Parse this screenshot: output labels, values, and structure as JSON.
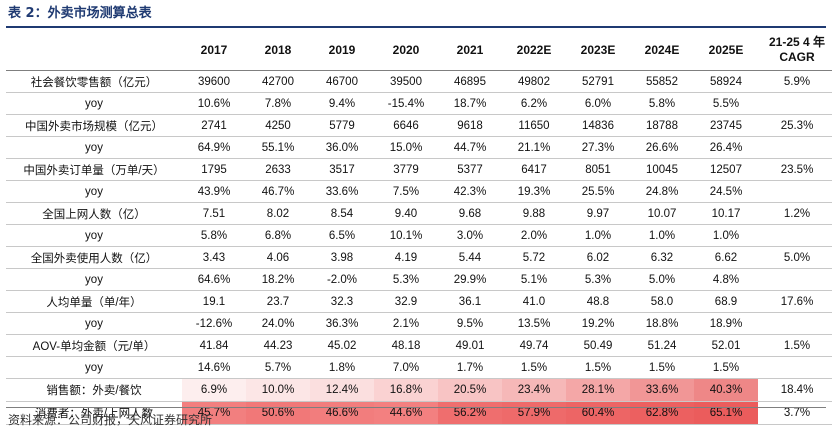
{
  "title": "表 2：外卖市场测算总表",
  "header": {
    "years": [
      "2017",
      "2018",
      "2019",
      "2020",
      "2021",
      "2022E",
      "2023E",
      "2024E",
      "2025E"
    ],
    "cagr_line1": "21-25 4 年",
    "cagr_line2": "CAGR"
  },
  "rows": [
    {
      "label": "社会餐饮零售额（亿元）",
      "values": [
        "39600",
        "42700",
        "46700",
        "39500",
        "46895",
        "49802",
        "52791",
        "55852",
        "58924"
      ],
      "cagr": "5.9%"
    },
    {
      "label": "yoy",
      "values": [
        "10.6%",
        "7.8%",
        "9.4%",
        "-15.4%",
        "18.7%",
        "6.2%",
        "6.0%",
        "5.8%",
        "5.5%"
      ],
      "cagr": ""
    },
    {
      "label": "中国外卖市场规模（亿元）",
      "values": [
        "2741",
        "4250",
        "5779",
        "6646",
        "9618",
        "11650",
        "14836",
        "18788",
        "23745"
      ],
      "cagr": "25.3%"
    },
    {
      "label": "yoy",
      "values": [
        "64.9%",
        "55.1%",
        "36.0%",
        "15.0%",
        "44.7%",
        "21.1%",
        "27.3%",
        "26.6%",
        "26.4%"
      ],
      "cagr": ""
    },
    {
      "label": "中国外卖订单量（万单/天）",
      "values": [
        "1795",
        "2633",
        "3517",
        "3779",
        "5377",
        "6417",
        "8051",
        "10045",
        "12507"
      ],
      "cagr": "23.5%"
    },
    {
      "label": "yoy",
      "values": [
        "43.9%",
        "46.7%",
        "33.6%",
        "7.5%",
        "42.3%",
        "19.3%",
        "25.5%",
        "24.8%",
        "24.5%"
      ],
      "cagr": ""
    },
    {
      "label": "全国上网人数（亿）",
      "values": [
        "7.51",
        "8.02",
        "8.54",
        "9.40",
        "9.68",
        "9.88",
        "9.97",
        "10.07",
        "10.17"
      ],
      "cagr": "1.2%"
    },
    {
      "label": "yoy",
      "values": [
        "5.8%",
        "6.8%",
        "6.5%",
        "10.1%",
        "3.0%",
        "2.0%",
        "1.0%",
        "1.0%",
        "1.0%"
      ],
      "cagr": ""
    },
    {
      "label": "全国外卖使用人数（亿）",
      "values": [
        "3.43",
        "4.06",
        "3.98",
        "4.19",
        "5.44",
        "5.72",
        "6.02",
        "6.32",
        "6.62"
      ],
      "cagr": "5.0%"
    },
    {
      "label": "yoy",
      "values": [
        "64.6%",
        "18.2%",
        "-2.0%",
        "5.3%",
        "29.9%",
        "5.1%",
        "5.3%",
        "5.0%",
        "4.8%"
      ],
      "cagr": ""
    },
    {
      "label": "人均单量（单/年）",
      "values": [
        "19.1",
        "23.7",
        "32.3",
        "32.9",
        "36.1",
        "41.0",
        "48.8",
        "58.0",
        "68.9"
      ],
      "cagr": "17.6%"
    },
    {
      "label": "yoy",
      "values": [
        "-12.6%",
        "24.0%",
        "36.3%",
        "2.1%",
        "9.5%",
        "13.5%",
        "19.2%",
        "18.8%",
        "18.9%"
      ],
      "cagr": ""
    },
    {
      "label": "AOV-单均金额（元/单）",
      "values": [
        "41.84",
        "44.23",
        "45.02",
        "48.18",
        "49.01",
        "49.74",
        "50.49",
        "51.24",
        "52.01"
      ],
      "cagr": "1.5%"
    },
    {
      "label": "yoy",
      "values": [
        "14.6%",
        "5.7%",
        "1.8%",
        "7.0%",
        "1.7%",
        "1.5%",
        "1.5%",
        "1.5%",
        "1.5%"
      ],
      "cagr": ""
    }
  ],
  "heat_rows": [
    {
      "label": "销售额：外卖/餐饮",
      "values": [
        "6.9%",
        "10.0%",
        "12.4%",
        "16.8%",
        "20.5%",
        "23.4%",
        "28.1%",
        "33.6%",
        "40.3%"
      ],
      "colors": [
        "#fdeeee",
        "#fce6e6",
        "#fbdfdf",
        "#fad2d2",
        "#f8c4c4",
        "#f6b8b8",
        "#f4a7a7",
        "#f19696",
        "#ee8787"
      ],
      "cagr": "18.4%"
    },
    {
      "label": "消费者：外卖/上网人数",
      "values": [
        "45.7%",
        "50.6%",
        "46.6%",
        "44.6%",
        "56.2%",
        "57.9%",
        "60.4%",
        "62.8%",
        "65.1%"
      ],
      "colors": [
        "#f27f7f",
        "#f17878",
        "#f27d7d",
        "#f38080",
        "#ef6e6e",
        "#ee6a6a",
        "#ed6565",
        "#ec6060",
        "#eb5c5c"
      ],
      "cagr": "3.7%"
    }
  ],
  "source": "资料来源：公司财报，天风证券研究所"
}
